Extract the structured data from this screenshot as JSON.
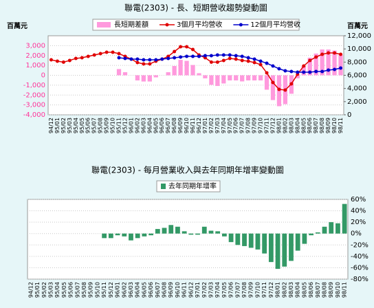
{
  "chart_data": [
    {
      "type": "combo",
      "title": "聯電(2303) -  長、短期營收趨勢變動圖",
      "y_label": "百萬元",
      "y2_label": "百萬元",
      "categories": [
        "94/12",
        "95/01",
        "95/02",
        "95/03",
        "95/04",
        "95/05",
        "95/06",
        "95/07",
        "95/08",
        "95/09",
        "95/10",
        "95/11",
        "95/12",
        "96/01",
        "96/02",
        "96/03",
        "96/04",
        "96/05",
        "96/06",
        "96/07",
        "96/08",
        "96/09",
        "96/10",
        "96/11",
        "96/12",
        "97/01",
        "97/02",
        "97/03",
        "97/04",
        "97/05",
        "97/06",
        "97/07",
        "97/08",
        "97/09",
        "97/10",
        "97/11",
        "97/12",
        "98/01",
        "98/02",
        "98/03",
        "98/04",
        "98/05",
        "98/06",
        "98/07",
        "98/08",
        "98/09",
        "98/10",
        "98/11"
      ],
      "ylim": [
        -4000,
        4000
      ],
      "yticks": [
        {
          "value": -4000,
          "label": "-4,000"
        },
        {
          "value": -3000,
          "label": "-3,000"
        },
        {
          "value": -2000,
          "label": "-2,000"
        },
        {
          "value": -1000,
          "label": "-1,000"
        },
        0,
        {
          "value": 1000,
          "label": "1,000"
        },
        {
          "value": 2000,
          "label": "2,000"
        },
        {
          "value": 3000,
          "label": "3,000"
        }
      ],
      "y2lim": [
        0,
        12000
      ],
      "y2ticks": [
        0,
        {
          "value": 2000,
          "label": "2,000"
        },
        {
          "value": 4000,
          "label": "4,000"
        },
        {
          "value": 6000,
          "label": "6,000"
        },
        {
          "value": 8000,
          "label": "8,000"
        },
        {
          "value": 10000,
          "label": "10,000"
        },
        {
          "value": 12000,
          "label": "12,000"
        }
      ],
      "grid": true,
      "series": [
        {
          "name": "長短期差額",
          "type": "bar",
          "color": "#ff99dd",
          "values": [
            null,
            null,
            null,
            null,
            null,
            null,
            null,
            null,
            null,
            null,
            null,
            630,
            310,
            0,
            -520,
            -630,
            -630,
            -210,
            0,
            310,
            940,
            1560,
            1460,
            1040,
            210,
            -310,
            -970,
            -1080,
            -830,
            -520,
            -520,
            -620,
            -520,
            -520,
            -520,
            -1460,
            -2510,
            -3130,
            -2920,
            -1870,
            -310,
            940,
            1780,
            2200,
            2610,
            2610,
            2500,
            2080
          ]
        },
        {
          "name": "3個月平均營收",
          "type": "line",
          "axis": "y2",
          "color": "#e00000",
          "values": [
            8350,
            8140,
            8000,
            8250,
            8560,
            8660,
            8870,
            9080,
            9290,
            9500,
            9500,
            9290,
            8870,
            8450,
            7930,
            7720,
            7720,
            8140,
            8450,
            8870,
            9600,
            10330,
            10330,
            9910,
            9080,
            8660,
            8000,
            8000,
            8250,
            8560,
            8450,
            8250,
            8140,
            7930,
            7620,
            6370,
            4900,
            3860,
            3760,
            4700,
            6160,
            7410,
            8250,
            8770,
            9180,
            9390,
            9390,
            9180
          ]
        },
        {
          "name": "12個月平均營收",
          "type": "line",
          "axis": "y2",
          "color": "#0000cc",
          "values": [
            null,
            null,
            null,
            null,
            null,
            null,
            null,
            null,
            null,
            null,
            null,
            8660,
            8560,
            8450,
            8450,
            8350,
            8350,
            8350,
            8450,
            8560,
            8660,
            8770,
            8870,
            8870,
            8870,
            8970,
            8970,
            9080,
            9080,
            9080,
            8970,
            8870,
            8660,
            8450,
            8140,
            7830,
            7410,
            6990,
            6680,
            6570,
            6470,
            6470,
            6470,
            6570,
            6570,
            6780,
            6890,
            7100
          ]
        }
      ]
    },
    {
      "type": "bar",
      "title": "聯電(2303) -  每月營業收入與去年同期年增率變動圖",
      "y_side": "right",
      "categories": [
        "94/12",
        "95/01",
        "95/02",
        "95/03",
        "95/04",
        "95/05",
        "95/06",
        "95/07",
        "95/08",
        "95/09",
        "95/10",
        "95/11",
        "95/12",
        "96/01",
        "96/02",
        "96/03",
        "96/04",
        "96/05",
        "96/06",
        "96/07",
        "96/08",
        "96/09",
        "96/10",
        "96/11",
        "96/12",
        "97/01",
        "97/02",
        "97/03",
        "97/04",
        "97/05",
        "97/06",
        "97/07",
        "97/08",
        "97/09",
        "97/10",
        "97/11",
        "97/12",
        "98/01",
        "98/02",
        "98/03",
        "98/04",
        "98/05",
        "98/06",
        "98/07",
        "98/08",
        "98/09",
        "98/10",
        "98/11"
      ],
      "ylim": [
        -80,
        60
      ],
      "yticks": [
        {
          "value": -80,
          "label": "-80%"
        },
        {
          "value": -60,
          "label": "-60%"
        },
        {
          "value": -40,
          "label": "-40%"
        },
        {
          "value": -20,
          "label": "-20%"
        },
        {
          "value": 0,
          "label": "0%"
        },
        {
          "value": 20,
          "label": "20%"
        },
        {
          "value": 40,
          "label": "40%"
        },
        {
          "value": 60,
          "label": "60%"
        }
      ],
      "grid": true,
      "series": [
        {
          "name": "去年同期年增率",
          "type": "bar",
          "color": "#339966",
          "values": [
            null,
            null,
            null,
            null,
            null,
            null,
            null,
            null,
            null,
            null,
            null,
            -8,
            -8,
            -3,
            -5,
            -12,
            -8,
            -5,
            -3,
            8,
            10,
            15,
            12,
            4,
            -2,
            -2,
            12,
            5,
            4,
            -5,
            -15,
            -20,
            -22,
            -25,
            -28,
            -35,
            -50,
            -62,
            -58,
            -48,
            -30,
            -18,
            -3,
            2,
            12,
            20,
            18,
            52
          ]
        }
      ]
    }
  ]
}
